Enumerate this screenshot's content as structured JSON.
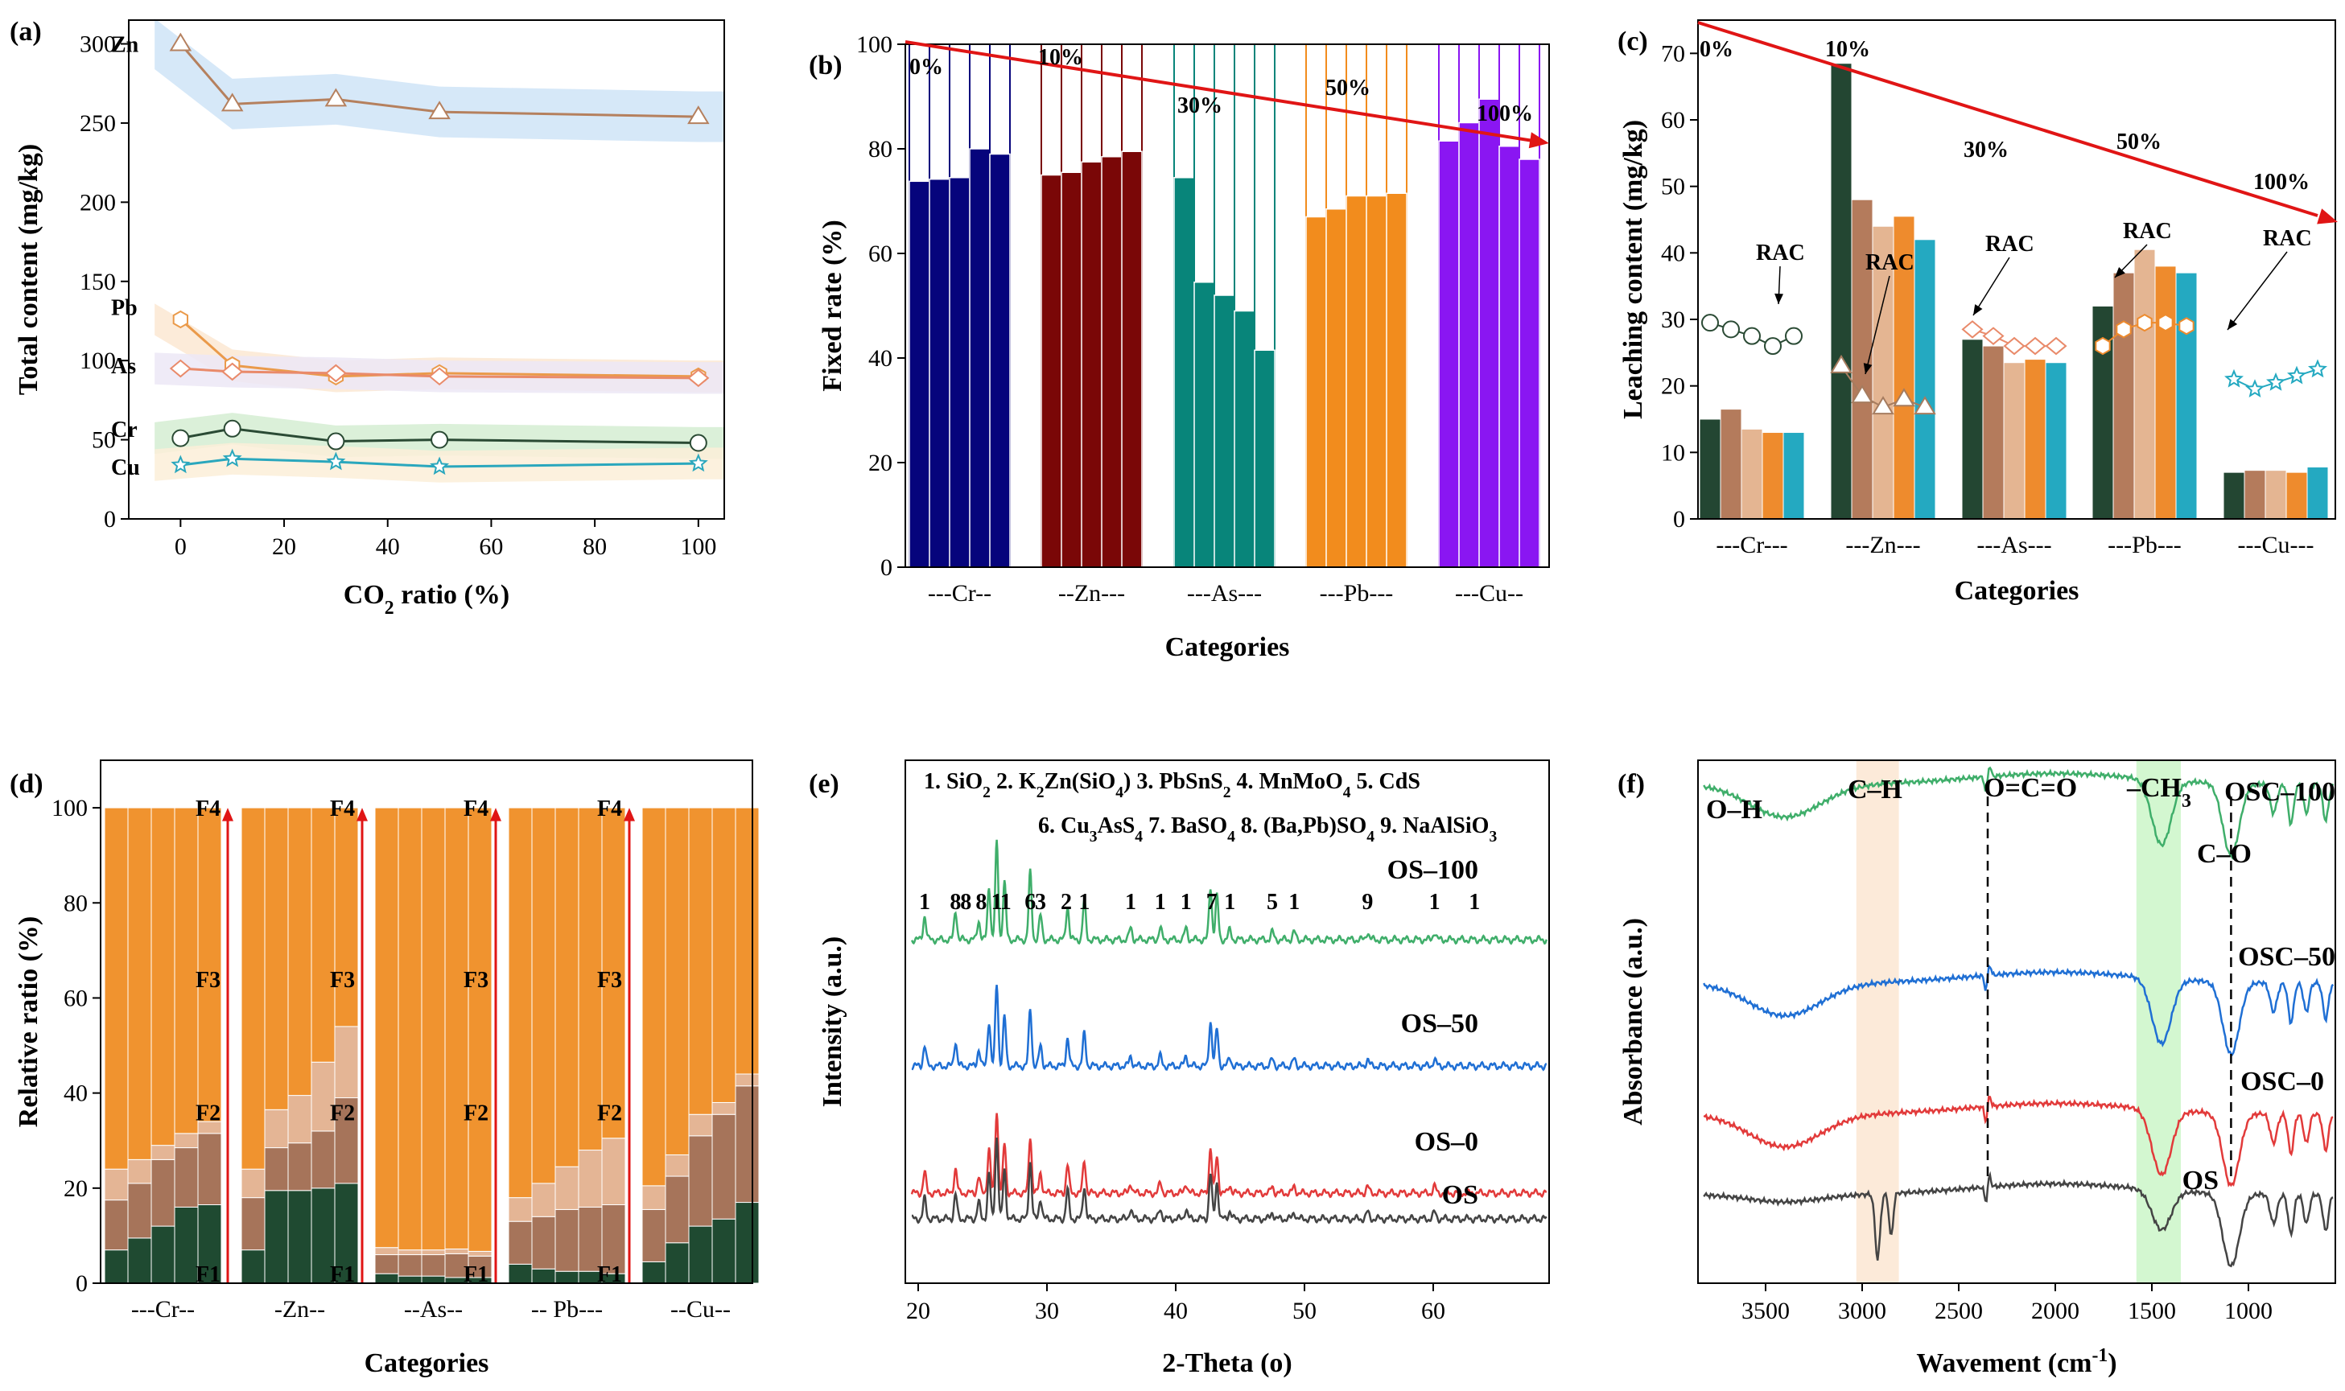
{
  "figure": "six-panel chart figure",
  "chart_data": [
    {
      "id": "a",
      "panel_label": "(a)",
      "type": "line",
      "xlabel_main": "CO",
      "xlabel_sub": "2",
      "xlabel_rest": " ratio (%)",
      "ylabel": "Total content (mg/kg)",
      "xlim": [
        -10,
        105
      ],
      "ylim": [
        0,
        315
      ],
      "xticks": [
        0,
        20,
        40,
        60,
        80,
        100
      ],
      "yticks": [
        0,
        50,
        100,
        150,
        200,
        250,
        300
      ],
      "x": [
        0,
        10,
        30,
        50,
        100
      ],
      "series": [
        {
          "name": "Zn",
          "values": [
            300,
            262,
            265,
            257,
            254
          ],
          "color": "#b5805e",
          "band": "#cfe4f7",
          "marker": "triangle"
        },
        {
          "name": "Pb",
          "values": [
            126,
            97,
            90,
            92,
            90
          ],
          "color": "#ea9a4a",
          "band": "#fbe8d2",
          "marker": "hexagon"
        },
        {
          "name": "As",
          "values": [
            95,
            93,
            92,
            90,
            89
          ],
          "color": "#e98a6a",
          "band": "#ece8f6",
          "marker": "diamond"
        },
        {
          "name": "Cr",
          "values": [
            51,
            57,
            49,
            50,
            48
          ],
          "color": "#2a4a34",
          "band": "#d5edd2",
          "marker": "circle"
        },
        {
          "name": "Cu",
          "values": [
            34,
            38,
            36,
            33,
            35
          ],
          "color": "#2aa7bd",
          "band": "#fbeed8",
          "marker": "star"
        }
      ]
    },
    {
      "id": "b",
      "panel_label": "(b)",
      "type": "bar",
      "xlabel": "Categories",
      "ylabel": "Fixed rate (%)",
      "ylim": [
        0,
        100
      ],
      "yticks": [
        0,
        20,
        40,
        60,
        80,
        100
      ],
      "categories": [
        "Cr",
        "Zn",
        "As",
        "Pb",
        "Cu"
      ],
      "group_labels": [
        "---Cr--",
        "--Zn---",
        "---As---",
        "---Pb---",
        "---Cu--"
      ],
      "colors": [
        "#06047c",
        "#7a0707",
        "#08857a",
        "#f28c1d",
        "#8a16f2"
      ],
      "values": [
        [
          73.8,
          74.2,
          74.5,
          80,
          79
        ],
        [
          75,
          75.5,
          77.5,
          78.5,
          79.5
        ],
        [
          74.5,
          54.5,
          52,
          49,
          41.5
        ],
        [
          67,
          68.5,
          71,
          71,
          71.5
        ],
        [
          81.5,
          85,
          89.5,
          80.5,
          78
        ]
      ],
      "ratio_labels": [
        "0%",
        "10%",
        "30%",
        "50%",
        "100%"
      ]
    },
    {
      "id": "c",
      "panel_label": "(c)",
      "type": "bar",
      "xlabel": "Categories",
      "ylabel": "Leaching content (mg/kg)",
      "ylim": [
        0,
        75
      ],
      "yticks": [
        0,
        10,
        20,
        30,
        40,
        50,
        60,
        70
      ],
      "categories": [
        "Cr",
        "Zn",
        "As",
        "Pb",
        "Cu"
      ],
      "group_labels": [
        "---Cr---",
        "---Zn---",
        "---As---",
        "---Pb---",
        "---Cu---"
      ],
      "bar_colors": [
        "#234632",
        "#b47b5c",
        "#e4b592",
        "#ee8b2d",
        "#24a9c1"
      ],
      "values": [
        [
          15,
          16.5,
          13.5,
          13,
          13
        ],
        [
          68.5,
          48,
          44,
          45.5,
          42
        ],
        [
          27,
          26,
          23.5,
          24,
          23.5
        ],
        [
          32,
          37,
          40.5,
          38,
          37
        ],
        [
          7,
          7.3,
          7.3,
          7,
          7.8
        ]
      ],
      "rac_label": "RAC",
      "rac": [
        [
          29.5,
          28.5,
          27.5,
          26,
          27.5
        ],
        [
          23,
          18.5,
          16.8,
          18,
          16.8
        ],
        [
          28.5,
          27.5,
          26,
          26,
          26
        ],
        [
          26,
          28.5,
          29.5,
          29.5,
          29
        ],
        [
          21,
          19.5,
          20.5,
          21.5,
          22.5
        ]
      ],
      "ratio_labels": [
        "0%",
        "10%",
        "30%",
        "50%",
        "100%"
      ]
    },
    {
      "id": "d",
      "panel_label": "(d)",
      "type": "bar",
      "xlabel": "Categories",
      "ylabel": "Relative ratio (%)",
      "ylim": [
        0,
        110
      ],
      "yticks": [
        0,
        20,
        40,
        60,
        80,
        100
      ],
      "categories": [
        "Cr",
        "Zn",
        "As",
        "Pb",
        "Cu"
      ],
      "group_labels": [
        "---Cr--",
        "-Zn--",
        "--As--",
        "-- Pb---",
        "--Cu--"
      ],
      "fraction_labels": [
        "F1",
        "F2",
        "F3",
        "F4"
      ],
      "fraction_colors": [
        "#1f4a31",
        "#a6745a",
        "#e4b595",
        "#f0932f"
      ],
      "F1": [
        [
          7,
          9.5,
          12,
          16,
          16.5
        ],
        [
          7,
          19.5,
          19.5,
          20,
          21
        ],
        [
          2,
          1.5,
          1.5,
          1.2,
          1.2
        ],
        [
          4,
          3,
          2.5,
          2.5,
          2
        ],
        [
          4.5,
          8.5,
          12,
          13.5,
          17
        ]
      ],
      "F2": [
        [
          10.5,
          11.5,
          14,
          12.5,
          15
        ],
        [
          11,
          9,
          10,
          12,
          18
        ],
        [
          4,
          4.5,
          4.5,
          5,
          4.5
        ],
        [
          9,
          11,
          13,
          13.5,
          14.5
        ],
        [
          11,
          14,
          19,
          22,
          24.5
        ]
      ],
      "F3": [
        [
          6.5,
          5,
          3,
          3,
          2.5
        ],
        [
          6,
          8,
          10,
          14.5,
          15
        ],
        [
          1.5,
          1,
          1,
          1,
          1
        ],
        [
          5,
          7,
          9,
          12,
          14
        ],
        [
          5,
          4.5,
          4.5,
          2.5,
          2.5
        ]
      ]
    },
    {
      "id": "e",
      "panel_label": "(e)",
      "type": "line",
      "xlabel": "2-Theta (o)",
      "ylabel": "Intensity (a.u.)",
      "xlim": [
        19,
        69
      ],
      "xticks": [
        20,
        30,
        40,
        50,
        60
      ],
      "series": [
        "OS–100",
        "OS–50",
        "OS–0",
        "OS"
      ],
      "series_colors": [
        "#3fae6a",
        "#1f6fd4",
        "#e23a3a",
        "#444444"
      ],
      "peaks": [
        20.5,
        22.9,
        24.7,
        25.5,
        26.1,
        26.7,
        28.7,
        29.5,
        31.6,
        32.9,
        36.5,
        38.8,
        40.8,
        42.7,
        43.2,
        44.2,
        47.5,
        49.2,
        54.9,
        60.1
      ],
      "peak_heights": [
        0.25,
        0.3,
        0.2,
        0.55,
        1.0,
        0.6,
        0.7,
        0.25,
        0.35,
        0.4,
        0.12,
        0.12,
        0.12,
        0.55,
        0.45,
        0.1,
        0.08,
        0.08,
        0.08,
        0.08
      ],
      "legend_row1": [
        "1. SiO",
        "2",
        "2. K",
        "2",
        "Zn(SiO",
        "4",
        ")",
        "3. PbSnS",
        "2",
        "4. MnMoO",
        "4",
        "5. CdS"
      ],
      "legend_row2": [
        "6. Cu",
        "3",
        "AsS",
        "4",
        "7. BaSO",
        "4",
        "8. (Ba,Pb)SO",
        "4",
        "9. NaAlSiO",
        "3"
      ],
      "peak_labels": [
        {
          "t": "1",
          "x": 20.5
        },
        {
          "t": "8",
          "x": 22.9
        },
        {
          "t": "8",
          "x": 23.7
        },
        {
          "t": "8",
          "x": 24.9
        },
        {
          "t": "1",
          "x": 26.1
        },
        {
          "t": "1",
          "x": 26.8
        },
        {
          "t": "6",
          "x": 28.7
        },
        {
          "t": "3",
          "x": 29.5
        },
        {
          "t": "2",
          "x": 31.5
        },
        {
          "t": "1",
          "x": 32.9
        },
        {
          "t": "1",
          "x": 36.5
        },
        {
          "t": "1",
          "x": 38.8
        },
        {
          "t": "1",
          "x": 40.8
        },
        {
          "t": "7",
          "x": 42.8
        },
        {
          "t": "1",
          "x": 44.2
        },
        {
          "t": "5",
          "x": 47.5
        },
        {
          "t": "1",
          "x": 49.2
        },
        {
          "t": "9",
          "x": 54.9
        },
        {
          "t": "1",
          "x": 60.1
        },
        {
          "t": "1",
          "x": 63.2
        }
      ]
    },
    {
      "id": "f",
      "panel_label": "(f)",
      "type": "line",
      "xlabel_main": "Wavement (cm",
      "xlabel_sup": "-1",
      "xlabel_rest": ")",
      "ylabel": "Absorbance (a.u.)",
      "xlim": [
        3850,
        550
      ],
      "xticks": [
        3500,
        3000,
        2500,
        2000,
        1500,
        1000
      ],
      "series": [
        "OSC–100",
        "OSC–50",
        "OSC–0",
        "OS"
      ],
      "series_colors": [
        "#3fae6a",
        "#1f6fd4",
        "#e23a3a",
        "#444444"
      ],
      "annotations": [
        "O–H",
        "C–H",
        "O=C=O",
        "–CH",
        "3",
        "C–O"
      ],
      "band_ch": [
        3030,
        2810
      ],
      "band_ch3": [
        1580,
        1350
      ],
      "dashed_lines": [
        2350,
        1090
      ]
    }
  ]
}
